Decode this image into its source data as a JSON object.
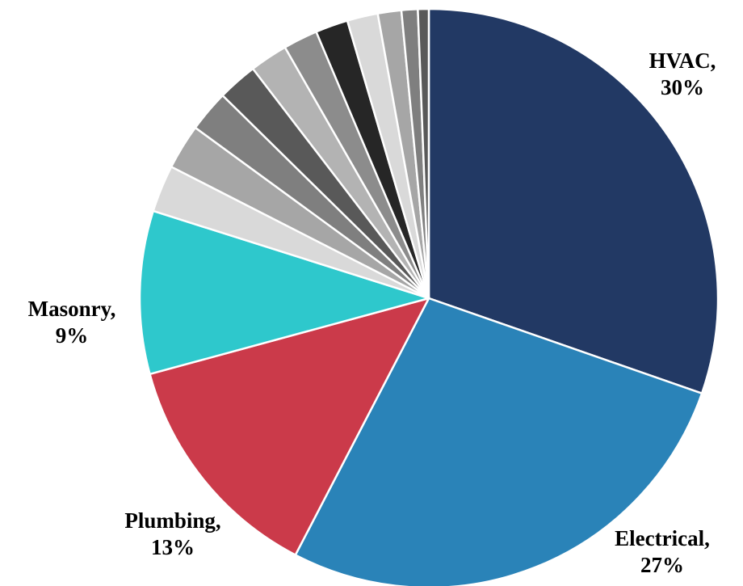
{
  "chart_data": {
    "type": "pie",
    "title": "",
    "start_angle_deg": 0,
    "direction": "clockwise",
    "slices": [
      {
        "name": "HVAC",
        "value": 30,
        "percent_label": "30%",
        "label": "HVAC,",
        "color": "#223964"
      },
      {
        "name": "Electrical",
        "value": 27,
        "percent_label": "27%",
        "label": "Electrical,",
        "color": "#2a83b8"
      },
      {
        "name": "Plumbing",
        "value": 13,
        "percent_label": "13%",
        "label": "Plumbing,",
        "color": "#cb3a4a"
      },
      {
        "name": "Masonry",
        "value": 9,
        "percent_label": "9%",
        "label": "Masonry,",
        "color": "#2ec8cc"
      },
      {
        "name": "",
        "value": 2.6,
        "color": "#d9d9d9"
      },
      {
        "name": "",
        "value": 2.5,
        "color": "#a6a6a6"
      },
      {
        "name": "",
        "value": 2.3,
        "color": "#7f7f7f"
      },
      {
        "name": "",
        "value": 2.2,
        "color": "#595959"
      },
      {
        "name": "",
        "value": 2.1,
        "color": "#b3b3b3"
      },
      {
        "name": "",
        "value": 1.9,
        "color": "#8c8c8c"
      },
      {
        "name": "",
        "value": 1.8,
        "color": "#262626"
      },
      {
        "name": "",
        "value": 1.7,
        "color": "#d9d9d9"
      },
      {
        "name": "",
        "value": 1.3,
        "color": "#a6a6a6"
      },
      {
        "name": "",
        "value": 0.9,
        "color": "#7f7f7f"
      },
      {
        "name": "",
        "value": 0.6,
        "color": "#595959"
      }
    ]
  }
}
